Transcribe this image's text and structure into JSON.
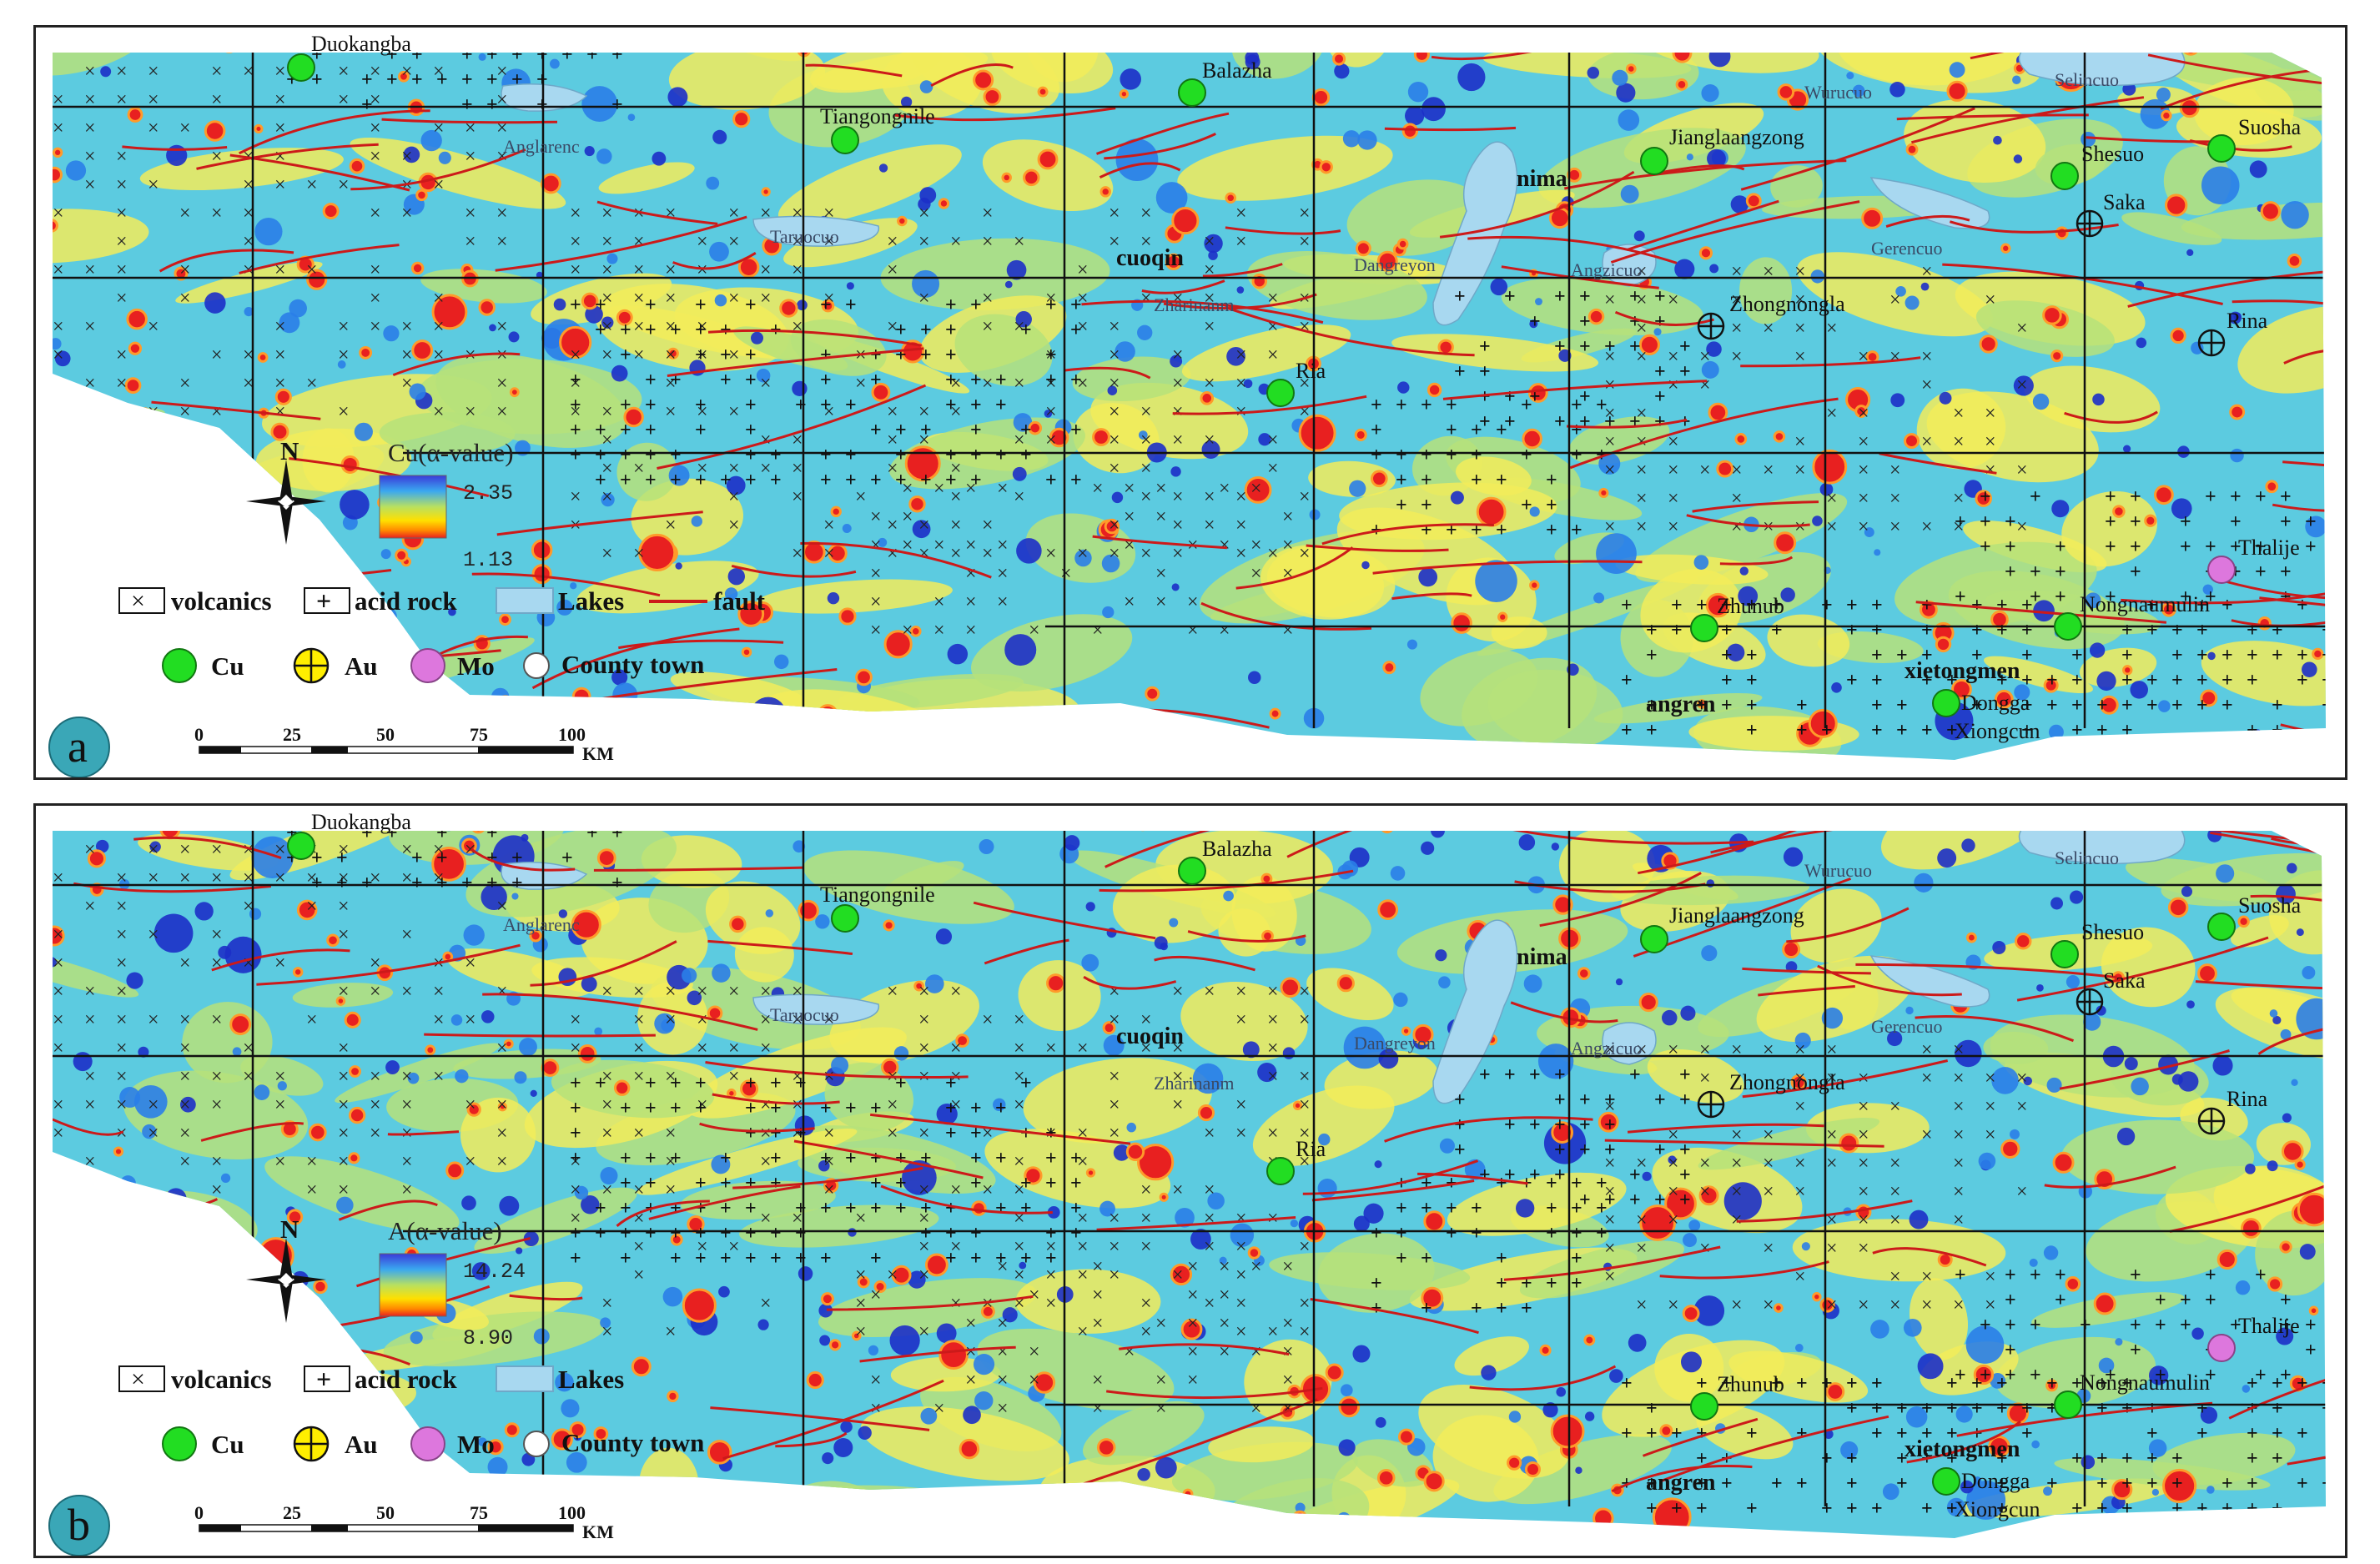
{
  "panels": [
    {
      "letter": "a",
      "colorbar": {
        "title": "Cu(α-value)",
        "max": "2.35",
        "min": "1.13"
      }
    },
    {
      "letter": "b",
      "colorbar": {
        "title": "A(α-value)",
        "max": "14.24",
        "min": "8.90"
      }
    }
  ],
  "legend": {
    "volcanics": "volcanics",
    "acid_rock": "acid rock",
    "lakes": "Lakes",
    "fault": "fault",
    "cu": "Cu",
    "au": "Au",
    "mo": "Mo",
    "county_town": "County town"
  },
  "north_label": "N",
  "scale_bar": {
    "ticks": [
      "0",
      "25",
      "50",
      "75",
      "100"
    ],
    "unit": "KM"
  },
  "places": {
    "duokangba": "Duokangba",
    "balazha": "Balazha",
    "tiangongnile": "Tiangongnile",
    "jianglaangzong": "Jianglaangzong",
    "shesuo": "Shesuo",
    "suosha": "Suosha",
    "saka": "Saka",
    "zhongnongla": "Zhongnongla",
    "rina": "Rina",
    "ria": "Ria",
    "thalije": "Thalije",
    "zhunub": "Zhunub",
    "nongnaumulin": "Nongnaumulin",
    "dongga": "Dongga",
    "xiongcun": "Xiongcun"
  },
  "towns": {
    "nima": "nima",
    "cuoqin": "cuoqin",
    "xietongmen": "xietongmen",
    "angren": "angren"
  },
  "lakes": {
    "anglarenc": "Anglarenc",
    "taruocuo": "Taruocuo",
    "zharinanm": "Zharinanm",
    "dangreyon": "Dangreyon",
    "angzicuo": "Angzicuo",
    "wurucuo": "Wurucuo",
    "selincuo": "Selincuo",
    "gerencuo": "Gerencuo"
  },
  "colors": {
    "cu_point": "#22dd22",
    "au_point": "#ffee00",
    "mo_point": "#dd77dd",
    "fault": "#cc1a1a",
    "lake": "#a8d8f0",
    "map_base": "#6fd6a8"
  }
}
